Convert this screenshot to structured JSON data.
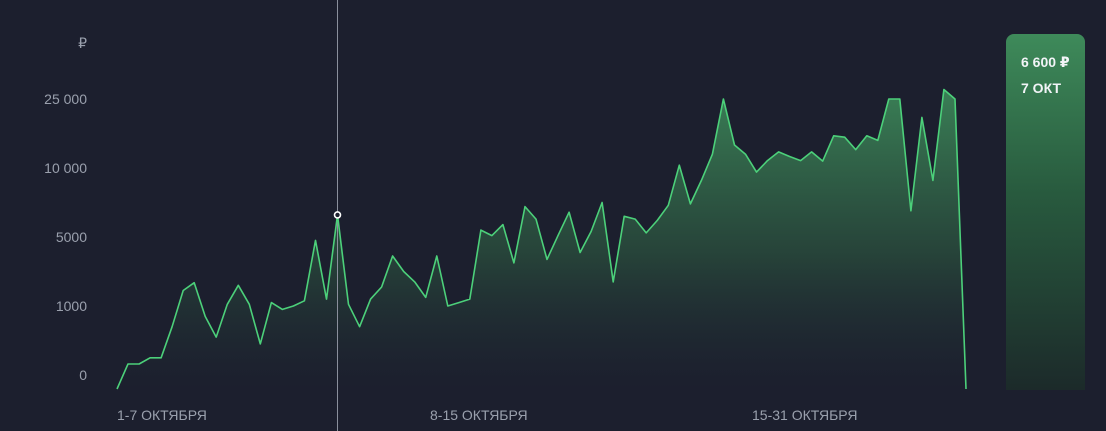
{
  "chart_data": {
    "type": "area",
    "ylabel": "₽",
    "y_ticks": [
      "25 000",
      "10 000",
      "5000",
      "1000",
      "0"
    ],
    "x_ticks": [
      "1-7 ОКТЯБРЯ",
      "8-15 ОКТЯБРЯ",
      "15-31 ОКТЯБРЯ"
    ],
    "scale": "non-linear (tick levels 0, 1000, 5000, 10 000, 25 000)",
    "grid": false,
    "color": "#4cd07a",
    "series": [
      {
        "values": [
          0,
          160,
          160,
          250,
          250,
          700,
          1900,
          2350,
          850,
          550,
          1100,
          2200,
          1100,
          450,
          1200,
          950,
          1000,
          1300,
          4800,
          1400,
          6600,
          1100,
          700,
          1400,
          2100,
          3900,
          3000,
          2400,
          1500,
          3900,
          1000,
          1200,
          1400,
          5500,
          5100,
          5900,
          3500,
          7200,
          6300,
          3700,
          5100,
          6800,
          4100,
          5400,
          7500,
          2400,
          6500,
          6300,
          5300,
          6200,
          7300,
          10600,
          7400,
          9100,
          13000,
          25000,
          15000,
          13000,
          9700,
          11600,
          13500,
          12500,
          11600,
          13500,
          11500,
          17000,
          16700,
          14000,
          17000,
          16000,
          25000,
          25000,
          6900,
          21000,
          9100,
          27500,
          25000,
          0
        ]
      }
    ]
  },
  "tooltip": {
    "value": "6 600 ₽",
    "date": "7 ОКТ"
  }
}
